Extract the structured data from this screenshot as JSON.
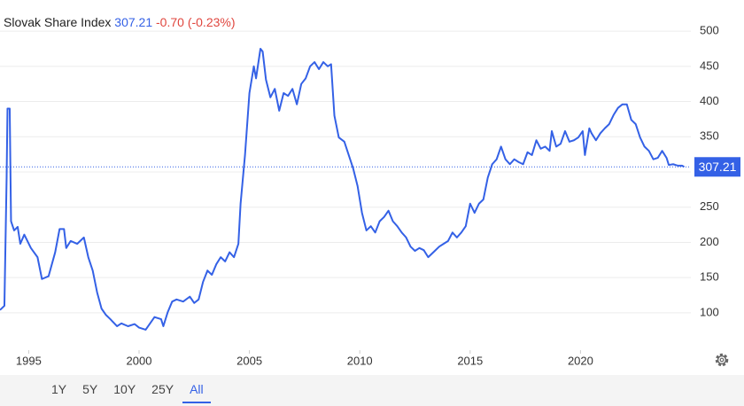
{
  "chart_data": {
    "type": "line",
    "title": "Slovak Share Index",
    "last_value": 307.21,
    "change": "-0.70 (-0.23%)",
    "color": "#3461e6",
    "change_color": "#e0463e",
    "x": [
      1993.7,
      1993.9,
      1994.0,
      1994.04,
      1994.14,
      1994.2,
      1994.34,
      1994.5,
      1994.62,
      1994.8,
      1995.1,
      1995.4,
      1995.6,
      1995.9,
      1996.2,
      1996.4,
      1996.6,
      1996.7,
      1996.9,
      1997.2,
      1997.5,
      1997.7,
      1997.9,
      1998.1,
      1998.3,
      1998.5,
      1998.7,
      1999.0,
      1999.2,
      1999.5,
      1999.8,
      2000.0,
      2000.3,
      2000.5,
      2000.7,
      2001.0,
      2001.1,
      2001.3,
      2001.5,
      2001.7,
      2002.0,
      2002.3,
      2002.5,
      2002.7,
      2002.9,
      2003.1,
      2003.3,
      2003.5,
      2003.7,
      2003.9,
      2004.1,
      2004.3,
      2004.5,
      2004.6,
      2004.8,
      2005.0,
      2005.2,
      2005.3,
      2005.5,
      2005.6,
      2005.75,
      2005.95,
      2006.15,
      2006.35,
      2006.55,
      2006.75,
      2006.95,
      2007.15,
      2007.35,
      2007.55,
      2007.75,
      2007.95,
      2008.15,
      2008.35,
      2008.55,
      2008.7,
      2008.85,
      2009.05,
      2009.3,
      2009.5,
      2009.7,
      2009.9,
      2010.1,
      2010.3,
      2010.5,
      2010.7,
      2010.9,
      2011.1,
      2011.3,
      2011.5,
      2011.7,
      2011.9,
      2012.1,
      2012.3,
      2012.5,
      2012.7,
      2012.9,
      2013.1,
      2013.4,
      2013.6,
      2013.8,
      2014.0,
      2014.2,
      2014.4,
      2014.6,
      2014.8,
      2015.0,
      2015.2,
      2015.4,
      2015.6,
      2015.8,
      2016.0,
      2016.2,
      2016.4,
      2016.6,
      2016.8,
      2017.0,
      2017.2,
      2017.4,
      2017.6,
      2017.8,
      2018.0,
      2018.2,
      2018.4,
      2018.6,
      2018.7,
      2018.9,
      2019.1,
      2019.3,
      2019.5,
      2019.7,
      2019.9,
      2020.1,
      2020.2,
      2020.4,
      2020.5,
      2020.7,
      2020.9,
      2021.1,
      2021.3,
      2021.5,
      2021.7,
      2021.9,
      2022.1,
      2022.3,
      2022.5,
      2022.7,
      2022.9,
      2023.1,
      2023.3,
      2023.5,
      2023.7,
      2023.9,
      2024.0,
      2024.2,
      2024.4,
      2024.6,
      2024.7
    ],
    "values": [
      104,
      110,
      292,
      390,
      390,
      230,
      217,
      222,
      198,
      211,
      192,
      179,
      148,
      152,
      186,
      219,
      219,
      192,
      202,
      198,
      207,
      179,
      160,
      129,
      106,
      97,
      91,
      81,
      85,
      81,
      84,
      79,
      76,
      85,
      94,
      91,
      81,
      101,
      116,
      119,
      116,
      123,
      114,
      119,
      144,
      160,
      154,
      169,
      179,
      173,
      186,
      179,
      198,
      255,
      324,
      412,
      450,
      433,
      475,
      471,
      431,
      406,
      418,
      387,
      412,
      408,
      418,
      396,
      425,
      433,
      450,
      456,
      446,
      456,
      450,
      453,
      380,
      349,
      343,
      324,
      305,
      280,
      242,
      217,
      223,
      214,
      230,
      236,
      245,
      230,
      223,
      214,
      207,
      194,
      188,
      192,
      189,
      179,
      188,
      194,
      198,
      202,
      214,
      207,
      214,
      223,
      255,
      242,
      255,
      261,
      292,
      311,
      318,
      336,
      318,
      311,
      318,
      314,
      311,
      328,
      324,
      345,
      333,
      336,
      330,
      358,
      336,
      340,
      358,
      343,
      345,
      349,
      358,
      324,
      362,
      355,
      345,
      355,
      362,
      368,
      381,
      391,
      396,
      396,
      374,
      368,
      349,
      336,
      330,
      318,
      320,
      330,
      320,
      310,
      311,
      309,
      309,
      307.21
    ],
    "xlim": [
      1993.7,
      2025.0
    ],
    "ylim": [
      47,
      519
    ],
    "xticks": [
      1995,
      2000,
      2005,
      2010,
      2015,
      2020
    ],
    "yticks": [
      100,
      150,
      200,
      250,
      300,
      350,
      400,
      450,
      500
    ],
    "grid": true,
    "range_buttons": [
      "1Y",
      "5Y",
      "10Y",
      "25Y",
      "All"
    ],
    "active_range": "All"
  }
}
